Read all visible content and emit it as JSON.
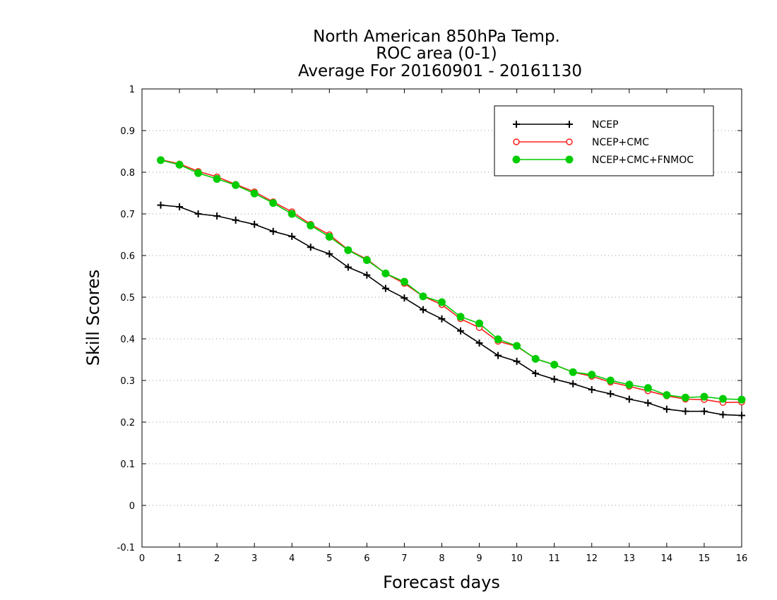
{
  "chart_data": {
    "type": "line",
    "title_lines": [
      "North American 850hPa Temp.",
      "ROC area (0-1)",
      "Average For 20160901 - 20161130"
    ],
    "xlabel": "Forecast days",
    "ylabel": "Skill Scores",
    "xlim": [
      0,
      16
    ],
    "ylim": [
      -0.1,
      1
    ],
    "x_ticks": [
      "0",
      "1",
      "2",
      "3",
      "4",
      "5",
      "6",
      "7",
      "8",
      "9",
      "10",
      "11",
      "12",
      "13",
      "14",
      "15",
      "16"
    ],
    "y_ticks": [
      "-0.1",
      "0",
      "0.1",
      "0.2",
      "0.3",
      "0.4",
      "0.5",
      "0.6",
      "0.7",
      "0.8",
      "0.9",
      "1"
    ],
    "grid": "horizontal-dotted",
    "legend_position": "top-right",
    "x": [
      0.5,
      1,
      1.5,
      2,
      2.5,
      3,
      3.5,
      4,
      4.5,
      5,
      5.5,
      6,
      6.5,
      7,
      7.5,
      8,
      8.5,
      9,
      9.5,
      10,
      10.5,
      11,
      11.5,
      12,
      12.5,
      13,
      13.5,
      14,
      14.5,
      15,
      15.5,
      16
    ],
    "series": [
      {
        "name": "NCEP",
        "color": "#000000",
        "marker": "plus",
        "values": [
          0.721,
          0.717,
          0.7,
          0.695,
          0.685,
          0.675,
          0.658,
          0.646,
          0.62,
          0.604,
          0.572,
          0.553,
          0.521,
          0.498,
          0.47,
          0.448,
          0.419,
          0.39,
          0.36,
          0.346,
          0.317,
          0.303,
          0.292,
          0.278,
          0.268,
          0.255,
          0.246,
          0.231,
          0.226,
          0.226,
          0.218,
          0.216
        ]
      },
      {
        "name": "NCEP+CMC",
        "color": "#ff2020",
        "marker": "open-circle",
        "values": [
          0.83,
          0.82,
          0.802,
          0.789,
          0.771,
          0.753,
          0.729,
          0.705,
          0.675,
          0.65,
          0.614,
          0.591,
          0.557,
          0.533,
          0.502,
          0.482,
          0.448,
          0.427,
          0.394,
          0.382,
          0.352,
          0.338,
          0.32,
          0.31,
          0.296,
          0.286,
          0.275,
          0.263,
          0.255,
          0.254,
          0.247,
          0.248
        ]
      },
      {
        "name": "NCEP+CMC+FNMOC",
        "color": "#00cc00",
        "marker": "filled-circle",
        "values": [
          0.829,
          0.818,
          0.798,
          0.784,
          0.769,
          0.749,
          0.726,
          0.7,
          0.672,
          0.645,
          0.613,
          0.589,
          0.557,
          0.537,
          0.502,
          0.488,
          0.453,
          0.437,
          0.399,
          0.383,
          0.352,
          0.338,
          0.32,
          0.314,
          0.3,
          0.29,
          0.282,
          0.265,
          0.259,
          0.261,
          0.256,
          0.254
        ]
      }
    ]
  }
}
